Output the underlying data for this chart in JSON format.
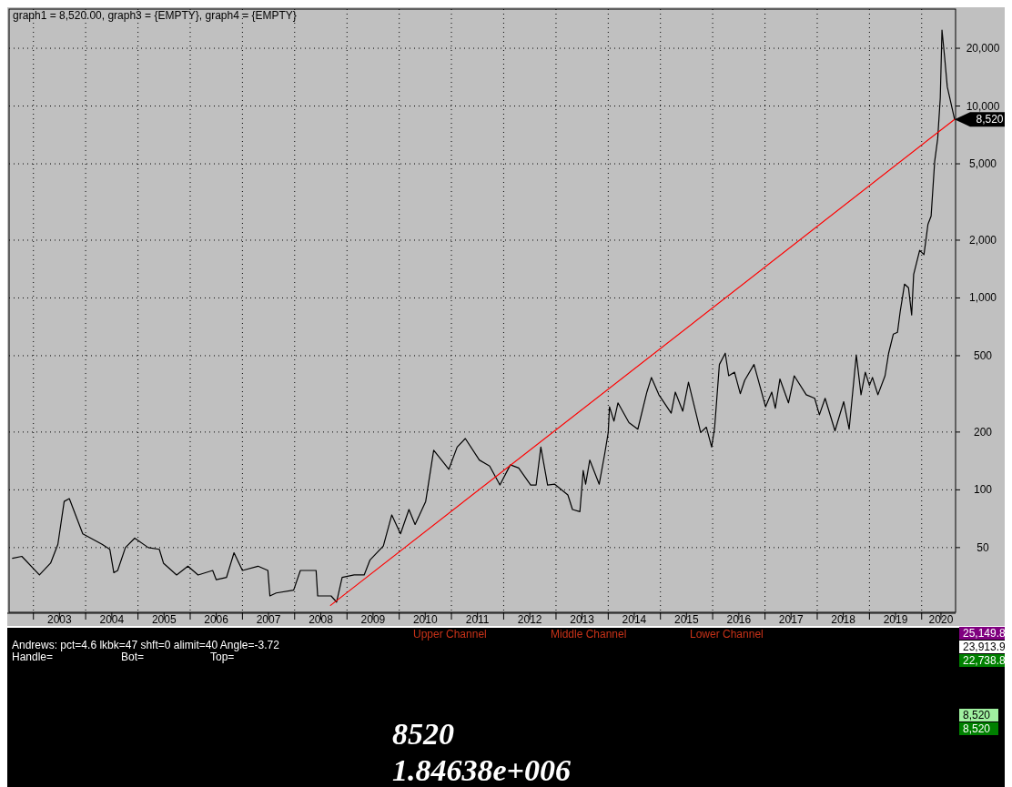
{
  "chart_data": [
    {
      "type": "line",
      "title": "graph1 = 8,520.00, graph3 = {EMPTY}, graph4 = {EMPTY}",
      "log": true,
      "grid": true,
      "xlim": [
        "2002-07-15",
        "2020-08-25"
      ],
      "xticks": [
        {
          "value": "2003-01-01",
          "label": null
        },
        {
          "value": "2003-07-02",
          "label": "2003"
        },
        {
          "value": "2004-01-01",
          "label": null
        },
        {
          "value": "2004-07-02",
          "label": "2004"
        },
        {
          "value": "2005-01-01",
          "label": null
        },
        {
          "value": "2005-07-02",
          "label": "2005"
        },
        {
          "value": "2006-01-01",
          "label": null
        },
        {
          "value": "2006-07-02",
          "label": "2006"
        },
        {
          "value": "2007-01-01",
          "label": null
        },
        {
          "value": "2007-07-02",
          "label": "2007"
        },
        {
          "value": "2008-01-01",
          "label": null
        },
        {
          "value": "2008-07-02",
          "label": "2008"
        },
        {
          "value": "2009-01-01",
          "label": null
        },
        {
          "value": "2009-07-02",
          "label": "2009"
        },
        {
          "value": "2010-01-01",
          "label": null
        },
        {
          "value": "2010-07-02",
          "label": "2010"
        },
        {
          "value": "2011-01-01",
          "label": null
        },
        {
          "value": "2011-07-02",
          "label": "2011"
        },
        {
          "value": "2012-01-01",
          "label": null
        },
        {
          "value": "2012-07-02",
          "label": "2012"
        },
        {
          "value": "2013-01-01",
          "label": null
        },
        {
          "value": "2013-07-02",
          "label": "2013"
        },
        {
          "value": "2014-01-01",
          "label": null
        },
        {
          "value": "2014-07-02",
          "label": "2014"
        },
        {
          "value": "2015-01-01",
          "label": null
        },
        {
          "value": "2015-07-02",
          "label": "2015"
        },
        {
          "value": "2016-01-01",
          "label": null
        },
        {
          "value": "2016-07-02",
          "label": "2016"
        },
        {
          "value": "2017-01-01",
          "label": null
        },
        {
          "value": "2017-07-02",
          "label": "2017"
        },
        {
          "value": "2018-01-01",
          "label": null
        },
        {
          "value": "2018-07-02",
          "label": "2018"
        },
        {
          "value": "2019-01-01",
          "label": null
        },
        {
          "value": "2019-07-02",
          "label": "2019"
        },
        {
          "value": "2020-01-01",
          "label": null
        },
        {
          "value": "2020-05-15",
          "label": "2020"
        }
      ],
      "ylim": [
        23,
        32000
      ],
      "yticks": [
        50,
        100,
        200,
        500,
        {
          "value": 1000,
          "label": "1,000"
        },
        {
          "value": 2000,
          "label": "2,000"
        },
        {
          "value": 5000,
          "label": "5,000"
        },
        {
          "value": 10000,
          "label": "10,000"
        },
        {
          "value": 20000,
          "label": "20,000"
        }
      ],
      "series": [
        {
          "color": "#000000",
          "x": [
            "2002-08-08",
            "2002-10-12",
            "2003-02-12",
            "2003-05-01",
            "2003-06-21",
            "2003-08-04",
            "2003-09-09",
            "2003-12-12",
            "2004-04-25",
            "2004-06-18",
            "2004-07-16",
            "2004-08-12",
            "2004-10-05",
            "2004-12-09",
            "2005-03-14",
            "2005-05-30",
            "2005-06-28",
            "2005-09-28",
            "2005-12-16",
            "2006-02-25",
            "2006-06-07",
            "2006-07-02",
            "2006-09-12",
            "2006-11-03",
            "2007-01-01",
            "2007-04-20",
            "2007-06-28",
            "2007-07-12",
            "2007-08-25",
            "2007-12-25",
            "2008-02-10",
            "2008-05-30",
            "2008-06-10",
            "2008-09-12",
            "2008-10-20",
            "2008-11-28",
            "2009-02-20",
            "2009-05-01",
            "2009-06-10",
            "2009-09-12",
            "2009-11-10",
            "2010-01-10",
            "2010-03-10",
            "2010-04-22",
            "2010-07-05",
            "2010-08-30",
            "2010-12-14",
            "2011-02-10",
            "2011-04-08",
            "2011-07-15",
            "2011-09-25",
            "2011-12-06",
            "2012-02-17",
            "2012-04-15",
            "2012-07-08",
            "2012-08-15",
            "2012-09-17",
            "2012-10-23",
            "2012-11-03",
            "2012-12-23",
            "2013-03-25",
            "2013-04-26",
            "2013-06-17",
            "2013-07-10",
            "2013-07-27",
            "2013-08-25",
            "2013-10-30",
            "2013-12-08",
            "2014-01-01",
            "2014-01-10",
            "2014-02-10",
            "2014-03-10",
            "2014-05-26",
            "2014-07-27",
            "2014-09-28",
            "2014-10-30",
            "2014-12-21",
            "2015-03-17",
            "2015-04-15",
            "2015-06-06",
            "2015-07-16",
            "2015-10-09",
            "2015-11-18",
            "2015-12-25",
            "2016-01-15",
            "2016-02-17",
            "2016-03-29",
            "2016-04-22",
            "2016-06-02",
            "2016-07-12",
            "2016-08-12",
            "2016-10-16",
            "2017-01-05",
            "2017-02-17",
            "2017-03-14",
            "2017-04-15",
            "2017-06-14",
            "2017-07-24",
            "2017-10-16",
            "2017-12-14",
            "2018-01-16",
            "2018-02-25",
            "2018-05-05",
            "2018-07-05",
            "2018-08-12",
            "2018-10-01",
            "2018-11-03",
            "2018-12-03",
            "2019-01-01",
            "2019-01-22",
            "2019-03-01",
            "2019-04-20",
            "2019-05-15",
            "2019-06-17",
            "2019-07-16",
            "2019-08-04",
            "2019-08-20",
            "2019-09-03",
            "2019-10-01",
            "2019-10-23",
            "2019-11-06",
            "2019-12-18",
            "2020-01-17",
            "2020-02-14",
            "2020-03-07",
            "2020-04-01",
            "2020-04-22",
            "2020-05-10",
            "2020-05-22",
            "2020-06-10",
            "2020-06-28",
            "2020-08-18"
          ],
          "values": [
            44,
            45,
            36,
            41.5,
            52,
            87,
            90,
            59,
            52,
            49,
            37,
            38,
            50,
            56,
            50,
            49,
            41.5,
            36,
            40,
            36,
            38,
            34,
            35,
            47,
            38,
            40,
            38,
            28,
            29,
            30,
            38,
            38,
            28,
            28,
            26,
            35,
            36,
            36,
            43,
            51,
            74,
            59,
            79,
            66,
            87,
            161,
            128,
            167,
            185,
            143,
            133,
            106,
            135,
            130,
            106,
            106,
            167,
            118,
            106,
            107,
            94,
            79,
            77,
            126,
            107,
            143,
            107,
            155,
            199,
            271,
            228,
            284,
            224,
            207,
            323,
            385,
            313,
            251,
            323,
            257,
            364,
            199,
            212,
            167,
            212,
            450,
            515,
            393,
            410,
            317,
            372,
            450,
            271,
            323,
            266,
            378,
            284,
            393,
            313,
            300,
            246,
            300,
            203,
            288,
            207,
            505,
            313,
            410,
            350,
            385,
            313,
            393,
            515,
            648,
            662,
            851,
            1010,
            1180,
            1130,
            815,
            1325,
            1770,
            1680,
            2420,
            2670,
            5150,
            6760,
            11000,
            24900,
            17800,
            12600,
            8520
          ]
        },
        {
          "type": "line",
          "color": "#ff0000",
          "x": [
            "2008-09-08",
            "2020-08-18"
          ],
          "values": [
            25,
            8520
          ]
        }
      ],
      "annotations": [
        {
          "text": "8,520",
          "x": "2020-08-18",
          "y": 8520
        }
      ]
    },
    {
      "type": "other",
      "annotations": [
        "Andrews: pct=4.6 lkbk=47 shft=0 alimit=40 Angle=-3.72",
        "Handle=",
        "Bot=",
        "Top=",
        "Upper Channel",
        "Middle Channel",
        "Lower Channel",
        "8520",
        "1.84638e+006",
        "25,149.8",
        "23,913.9",
        "22,738.8",
        "8,520",
        "8,520"
      ]
    }
  ]
}
